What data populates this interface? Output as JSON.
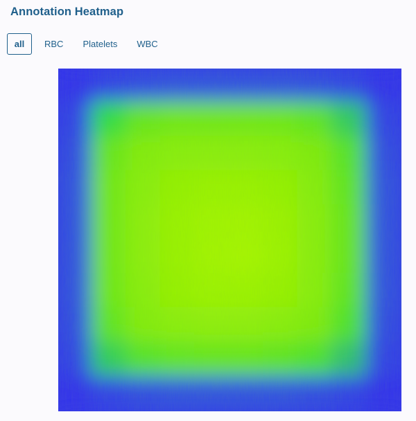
{
  "header": {
    "title": "Annotation Heatmap"
  },
  "tabs": [
    {
      "label": "all",
      "active": true
    },
    {
      "label": "RBC",
      "active": false
    },
    {
      "label": "Platelets",
      "active": false
    },
    {
      "label": "WBC",
      "active": false
    }
  ],
  "colors": {
    "accent": "#1f5f8b",
    "heat_low": "#3333ee",
    "heat_mid": "#33dd44",
    "heat_high": "#a6f500"
  },
  "chart_data": {
    "type": "heatmap",
    "title": "",
    "xlabel": "",
    "ylabel": "",
    "colorscale": [
      "#3333ee",
      "#2f7fd0",
      "#33dd44",
      "#7bea10",
      "#a6f500"
    ],
    "description_of_values": "density grid, low at edges, high in center",
    "z": [
      [
        0.0,
        0.05,
        0.08,
        0.1,
        0.1,
        0.1,
        0.1,
        0.09,
        0.06,
        0.0
      ],
      [
        0.05,
        0.5,
        0.68,
        0.72,
        0.72,
        0.72,
        0.71,
        0.66,
        0.45,
        0.05
      ],
      [
        0.08,
        0.68,
        0.8,
        0.84,
        0.85,
        0.85,
        0.83,
        0.78,
        0.62,
        0.08
      ],
      [
        0.1,
        0.72,
        0.84,
        0.9,
        0.93,
        0.93,
        0.9,
        0.82,
        0.66,
        0.1
      ],
      [
        0.1,
        0.72,
        0.86,
        0.93,
        0.97,
        0.98,
        0.94,
        0.84,
        0.68,
        0.1
      ],
      [
        0.1,
        0.72,
        0.86,
        0.93,
        0.98,
        1.0,
        0.95,
        0.84,
        0.68,
        0.1
      ],
      [
        0.1,
        0.71,
        0.84,
        0.91,
        0.95,
        0.95,
        0.92,
        0.83,
        0.66,
        0.1
      ],
      [
        0.09,
        0.66,
        0.8,
        0.85,
        0.87,
        0.87,
        0.84,
        0.78,
        0.6,
        0.08
      ],
      [
        0.06,
        0.46,
        0.62,
        0.67,
        0.68,
        0.68,
        0.66,
        0.6,
        0.42,
        0.05
      ],
      [
        0.0,
        0.05,
        0.08,
        0.1,
        0.1,
        0.1,
        0.1,
        0.08,
        0.05,
        0.0
      ]
    ]
  }
}
